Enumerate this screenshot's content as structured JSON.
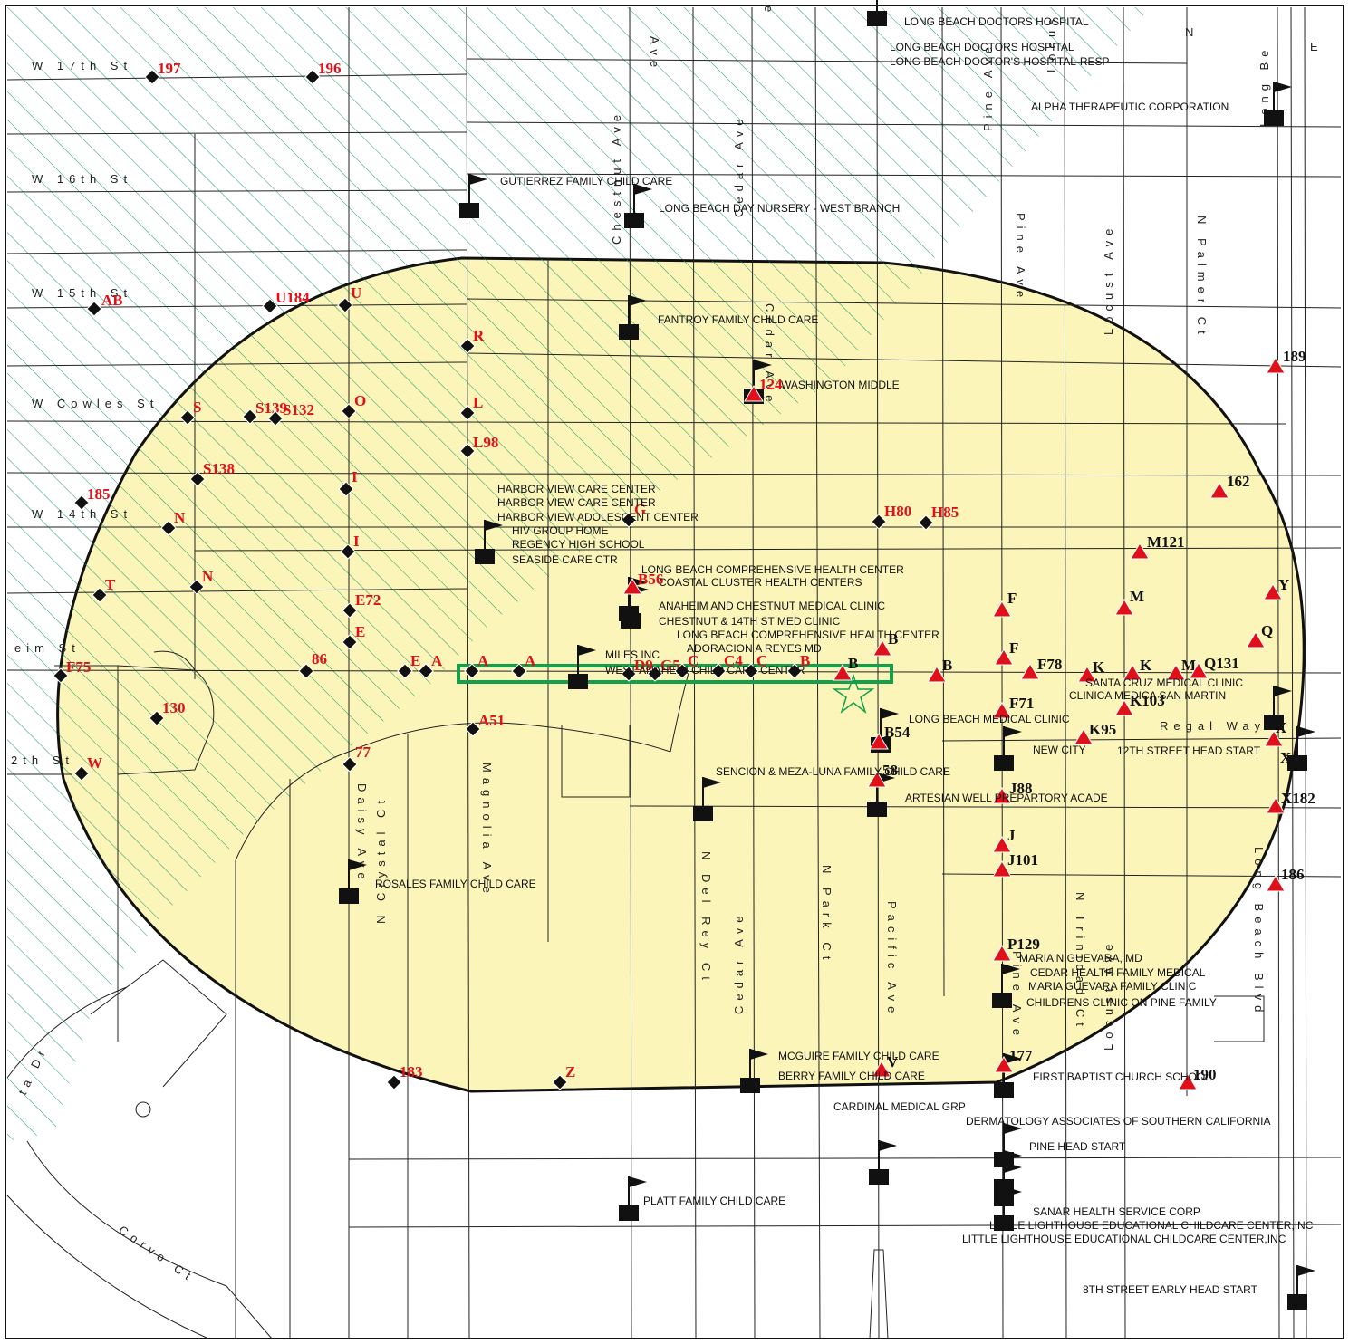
{
  "colors": {
    "buffer_fill": "#fbf3ae",
    "hatch": "#1f9b6a",
    "site": "#14a04a",
    "red_marker": "#e0101a",
    "black": "#111111"
  },
  "legend_groups": {
    "diamond": "black diamond",
    "triangle": "red triangle",
    "flag": "black flag with square",
    "site": "green star"
  },
  "streets": {
    "w17": "W 17th St",
    "w16": "W 16th St",
    "w15": "W 15th St",
    "cowles": "W Cowles St",
    "w14": "W 14th St",
    "w12": "2th St",
    "anaheim": "eim St",
    "chestnut": "Chestnut Ave",
    "cedar": "Cedar Ave",
    "cedar2": "Cedar Ave",
    "cedar3": "Cedar Ave",
    "pine": "Pine Ave",
    "pine2": "Pine Ave",
    "locust": "Locust Ave",
    "locust2": "Locust Ave",
    "palmer": "N Palmer Ct",
    "magnolia": "Magnolia Ave",
    "crystal": "N Crystal Ct",
    "daisy": "Daisy Ave",
    "delrey": "N Del Rey Ct",
    "park": "N Park Ct",
    "pacific": "Pacific Ave",
    "trinity": "N Trinidad Ct",
    "longbeach": "Long Beach Blvd",
    "longbeach2": "Long Be",
    "regal": "Regal Way",
    "corvo": "Corvo Ct",
    "tadr": "ta Dr",
    "e": "E",
    "n": "N",
    "avetop": "Ave",
    "etop": "e",
    "pinetop": "Pine Ave",
    "pineave": "Pine Ave",
    "locusttop": "Locus"
  },
  "facilities": [
    "LONG BEACH DOCTORS HOSPITAL",
    "LONG BEACH DOCTORS HOSPITAL",
    "LONG BEACH DOCTOR'S HOSPITAL-RESP",
    "ALPHA THERAPEUTIC CORPORATION",
    "GUTIERREZ FAMILY CHILD CARE",
    "LONG BEACH DAY NURSERY - WEST BRANCH",
    "FANTROY FAMILY CHILD CARE",
    "WASHINGTON MIDDLE",
    "HARBOR VIEW CARE CENTER",
    "HARBOR VIEW CARE CENTER",
    "HARBOR VIEW ADOLESCENT CENTER",
    "HIV GROUP HOME",
    "REGENCY HIGH SCHOOL",
    "SEASIDE CARE CTR",
    "LONG BEACH COMPREHENSIVE HEALTH CENTER",
    "COASTAL CLUSTER HEALTH CENTERS",
    "ANAHEIM AND CHESTNUT MEDICAL CLINIC",
    "CHESTNUT & 14TH ST MED CLINIC",
    "LONG BEACH COMPREHENSIVE HEALTH CENTER",
    "ADORACION A REYES MD",
    "MILES INC",
    "WEST ANAHEIM CHILD CARE CENTER",
    "SANTA CRUZ MEDICAL CLINIC",
    "CLINICA MEDICA SAN MARTIN",
    "LONG BEACH MEDICAL CLINIC",
    "NEW CITY",
    "12TH STREET HEAD START",
    "SENCION & MEZA-LUNA FAMILY CHILD CARE",
    "ARTESIAN WELL PREPARTORY ACADE",
    "ROSALES FAMILY CHILD CARE",
    "MARIA N GUEVARA, MD",
    "CEDAR HEALTH FAMILY MEDICAL",
    "MARIA GUEVARA FAMILY CLINIC",
    "CHILDRENS CLINIC ON PINE FAMILY",
    "MCGUIRE FAMILY CHILD CARE",
    "BERRY FAMILY CHILD CARE",
    "CARDINAL MEDICAL GRP",
    "FIRST BAPTIST CHURCH SCHOOL",
    "DERMATOLOGY ASSOCIATES OF SOUTHERN CALIFORNIA",
    "PINE HEAD START",
    "PLATT FAMILY CHILD CARE",
    "SANAR HEALTH SERVICE CORP",
    "LITTLE LIGHTHOUSE EDUCATIONAL CHILDCARE CENTER,INC",
    "LITTLE LIGHTHOUSE EDUCATIONAL CHILDCARE CENTER,INC",
    "8TH STREET EARLY HEAD START"
  ],
  "diamond_labels": [
    "197",
    "196",
    "AB",
    "U184",
    "U",
    "R",
    "S",
    "S139",
    "S132",
    "O",
    "L",
    "L98",
    "S138",
    "I",
    "185",
    "N",
    "I",
    "N",
    "T",
    "E72",
    "E",
    "86",
    "E",
    "A",
    "A",
    "A",
    "F75",
    "130",
    "A51",
    "W",
    "77",
    "183",
    "Z",
    "G",
    "D9",
    "G5",
    "C",
    "C4",
    "C",
    "B",
    "H80",
    "H85"
  ],
  "triangle_labels": [
    "189",
    "162",
    "M121",
    "F",
    "M",
    "Y",
    "Q",
    "B",
    "B",
    "F",
    "F78",
    "K",
    "K",
    "M",
    "Q131",
    "K103",
    "F71",
    "K95",
    "X",
    "J88",
    "X182",
    "J",
    "J101",
    "186",
    "P129",
    "177",
    "190",
    "V",
    "B54",
    "58",
    "B56",
    "124",
    "B"
  ],
  "flag_labels": [
    "X"
  ]
}
